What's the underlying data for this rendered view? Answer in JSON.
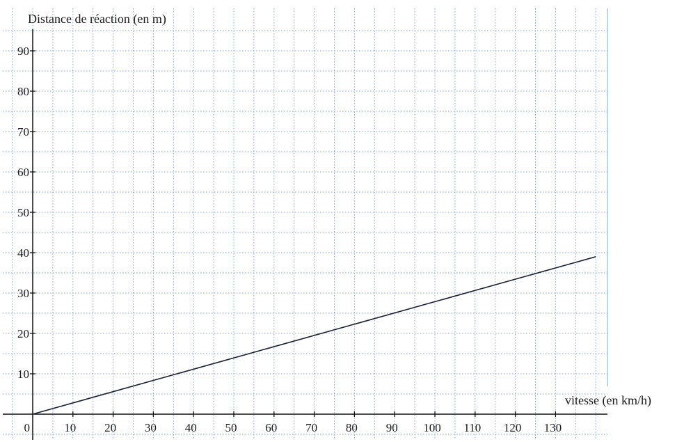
{
  "chart_data": {
    "type": "line",
    "title": "",
    "ylabel": "Distance de réaction (en m)",
    "xlabel": "vitesse (en km/h)",
    "xlim": [
      0,
      140
    ],
    "ylim": [
      0,
      95
    ],
    "x_ticks": [
      0,
      10,
      20,
      30,
      40,
      50,
      60,
      70,
      80,
      90,
      100,
      110,
      120,
      130
    ],
    "y_ticks": [
      10,
      20,
      30,
      40,
      50,
      60,
      70,
      80,
      90
    ],
    "grid": true,
    "grid_minor_step_x": 5,
    "grid_minor_step_y": 5,
    "colors": {
      "line": "#1c2233",
      "grid": "#8aa4c8",
      "axis": "#111111",
      "frame": "#a9c8e6"
    },
    "series": [
      {
        "x": [
          0,
          140
        ],
        "y": [
          0,
          39
        ]
      }
    ]
  }
}
